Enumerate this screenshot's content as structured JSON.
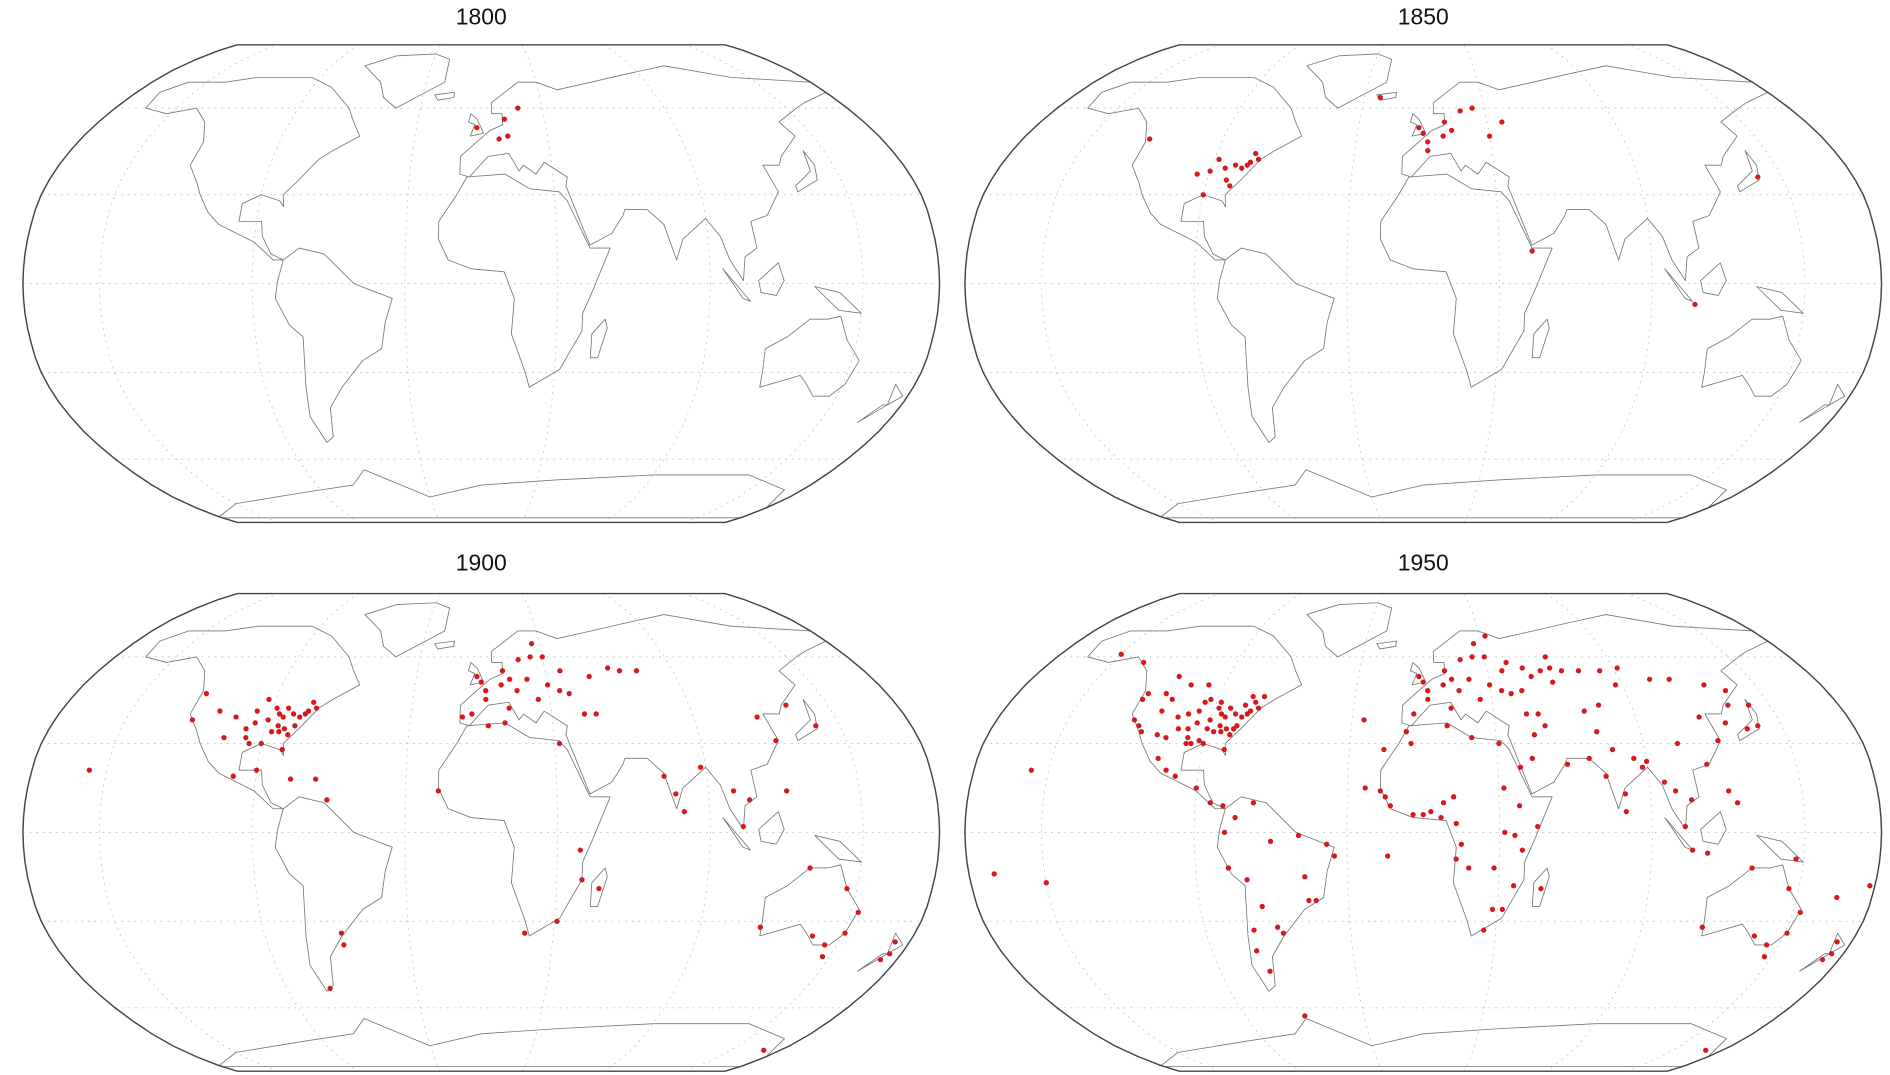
{
  "marker_color": "#d7191c",
  "panels": [
    {
      "title": "1800",
      "points": [
        [
          -2,
          53
        ],
        [
          8,
          49
        ],
        [
          12,
          50
        ],
        [
          18,
          60
        ],
        [
          11,
          56
        ]
      ]
    },
    {
      "title": "1850",
      "points": [
        [
          -74,
          41
        ],
        [
          -71,
          42
        ],
        [
          -75,
          40
        ],
        [
          -77,
          39
        ],
        [
          -80,
          40
        ],
        [
          -84,
          39
        ],
        [
          -88,
          42
        ],
        [
          -90,
          38
        ],
        [
          -82,
          35
        ],
        [
          -90,
          30
        ],
        [
          -95,
          37
        ],
        [
          -80,
          33
        ],
        [
          -73,
          44
        ],
        [
          -123,
          49
        ],
        [
          -2,
          53
        ],
        [
          0,
          51
        ],
        [
          2,
          48
        ],
        [
          9,
          50
        ],
        [
          13,
          52
        ],
        [
          18,
          59
        ],
        [
          24,
          60
        ],
        [
          10,
          55
        ],
        [
          2,
          45
        ],
        [
          30,
          50
        ],
        [
          37,
          55
        ],
        [
          -22,
          64
        ],
        [
          43,
          11
        ],
        [
          140,
          36
        ],
        [
          107,
          -7
        ]
      ]
    },
    {
      "title": "1900",
      "points": [
        [
          -74,
          41
        ],
        [
          -71,
          42
        ],
        [
          -75,
          40
        ],
        [
          -77,
          39
        ],
        [
          -80,
          40
        ],
        [
          -84,
          39
        ],
        [
          -88,
          42
        ],
        [
          -90,
          38
        ],
        [
          -82,
          35
        ],
        [
          -90,
          30
        ],
        [
          -95,
          37
        ],
        [
          -80,
          33
        ],
        [
          -73,
          44
        ],
        [
          -83,
          42
        ],
        [
          -86,
          40
        ],
        [
          -93,
          45
        ],
        [
          -96,
          41
        ],
        [
          -98,
          35
        ],
        [
          -97,
          32
        ],
        [
          -95,
          30
        ],
        [
          -87,
          34
        ],
        [
          -84,
          34
        ],
        [
          -81,
          28
        ],
        [
          -78,
          36
        ],
        [
          -104,
          39
        ],
        [
          -112,
          41
        ],
        [
          -122,
          38
        ],
        [
          -122,
          47
        ],
        [
          -106,
          32
        ],
        [
          -85,
          36
        ],
        [
          -99,
          19
        ],
        [
          -90,
          21
        ],
        [
          -76,
          18
        ],
        [
          -66,
          18
        ],
        [
          -61,
          11
        ],
        [
          -58,
          -34
        ],
        [
          -70,
          -53
        ],
        [
          -58,
          -38
        ],
        [
          -157,
          21
        ],
        [
          -2,
          53
        ],
        [
          0,
          51
        ],
        [
          2,
          48
        ],
        [
          9,
          50
        ],
        [
          13,
          52
        ],
        [
          18,
          59
        ],
        [
          24,
          60
        ],
        [
          10,
          55
        ],
        [
          2,
          45
        ],
        [
          30,
          50
        ],
        [
          37,
          55
        ],
        [
          21,
          52
        ],
        [
          16,
          48
        ],
        [
          12,
          42
        ],
        [
          -4,
          40
        ],
        [
          -8,
          39
        ],
        [
          25,
          45
        ],
        [
          44,
          40
        ],
        [
          50,
          53
        ],
        [
          60,
          56
        ],
        [
          30,
          60
        ],
        [
          26,
          65
        ],
        [
          35,
          48
        ],
        [
          39,
          47
        ],
        [
          49,
          40
        ],
        [
          65,
          55
        ],
        [
          73,
          55
        ],
        [
          77,
          13
        ],
        [
          73,
          19
        ],
        [
          88,
          22
        ],
        [
          80,
          7
        ],
        [
          100,
          14
        ],
        [
          106,
          11
        ],
        [
          103,
          2
        ],
        [
          121,
          14
        ],
        [
          121,
          31
        ],
        [
          117,
          39
        ],
        [
          132,
          43
        ],
        [
          140,
          36
        ],
        [
          32,
          30
        ],
        [
          10,
          37
        ],
        [
          3,
          36
        ],
        [
          -17,
          14
        ],
        [
          39,
          -6
        ],
        [
          40,
          -16
        ],
        [
          18,
          -34
        ],
        [
          31,
          -30
        ],
        [
          47,
          -19
        ],
        [
          115,
          -32
        ],
        [
          138,
          -35
        ],
        [
          145,
          -38
        ],
        [
          151,
          -34
        ],
        [
          153,
          -27
        ],
        [
          146,
          -19
        ],
        [
          130,
          -12
        ],
        [
          147,
          -42
        ],
        [
          175,
          -41
        ],
        [
          173,
          -43
        ],
        [
          174,
          -37
        ],
        [
          170,
          -77
        ]
      ]
    },
    {
      "title": "1950",
      "points": [
        [
          -74,
          41
        ],
        [
          -71,
          42
        ],
        [
          -75,
          40
        ],
        [
          -77,
          39
        ],
        [
          -80,
          40
        ],
        [
          -84,
          39
        ],
        [
          -88,
          42
        ],
        [
          -90,
          38
        ],
        [
          -82,
          35
        ],
        [
          -90,
          30
        ],
        [
          -95,
          37
        ],
        [
          -80,
          33
        ],
        [
          -73,
          44
        ],
        [
          -83,
          42
        ],
        [
          -86,
          40
        ],
        [
          -93,
          45
        ],
        [
          -96,
          41
        ],
        [
          -98,
          35
        ],
        [
          -97,
          32
        ],
        [
          -95,
          30
        ],
        [
          -87,
          34
        ],
        [
          -84,
          34
        ],
        [
          -81,
          28
        ],
        [
          -78,
          36
        ],
        [
          -104,
          39
        ],
        [
          -112,
          41
        ],
        [
          -122,
          38
        ],
        [
          -122,
          47
        ],
        [
          -106,
          32
        ],
        [
          -85,
          36
        ],
        [
          -100,
          40
        ],
        [
          -102,
          35
        ],
        [
          -110,
          33
        ],
        [
          -117,
          34
        ],
        [
          -119,
          36
        ],
        [
          -90,
          35
        ],
        [
          -92,
          31
        ],
        [
          -97,
          30
        ],
        [
          -95,
          44
        ],
        [
          -88,
          44
        ],
        [
          -70,
          46
        ],
        [
          -77,
          43
        ],
        [
          -79,
          35
        ],
        [
          -110,
          45
        ],
        [
          -114,
          47
        ],
        [
          -123,
          45
        ],
        [
          -135,
          58
        ],
        [
          -150,
          61
        ],
        [
          -105,
          50
        ],
        [
          -113,
          53
        ],
        [
          -97,
          50
        ],
        [
          -75,
          46
        ],
        [
          -99,
          19
        ],
        [
          -103,
          21
        ],
        [
          -107,
          25
        ],
        [
          -90,
          15
        ],
        [
          -84,
          10
        ],
        [
          -79,
          9
        ],
        [
          -74,
          5
        ],
        [
          -67,
          10
        ],
        [
          -78,
          0
        ],
        [
          -77,
          -12
        ],
        [
          -70,
          -16
        ],
        [
          -47,
          -15
        ],
        [
          -43,
          -23
        ],
        [
          -46,
          -23
        ],
        [
          -35,
          -8
        ],
        [
          -38,
          -4
        ],
        [
          -49,
          -1
        ],
        [
          -60,
          -3
        ],
        [
          -58,
          -34
        ],
        [
          -60,
          -32
        ],
        [
          -65,
          -25
        ],
        [
          -70,
          -33
        ],
        [
          -71,
          -40
        ],
        [
          -68,
          -47
        ],
        [
          -17,
          14
        ],
        [
          -15,
          12
        ],
        [
          -13,
          9
        ],
        [
          -4,
          6
        ],
        [
          0,
          6
        ],
        [
          3,
          7
        ],
        [
          8,
          10
        ],
        [
          7,
          5
        ],
        [
          12,
          12
        ],
        [
          13,
          3
        ],
        [
          15,
          -4
        ],
        [
          13,
          -9
        ],
        [
          18,
          -12
        ],
        [
          28,
          -12
        ],
        [
          32,
          -26
        ],
        [
          28,
          -26
        ],
        [
          25,
          -33
        ],
        [
          36,
          -1
        ],
        [
          39,
          -6
        ],
        [
          32,
          0
        ],
        [
          32,
          15
        ],
        [
          38,
          9
        ],
        [
          45,
          2
        ],
        [
          31,
          30
        ],
        [
          10,
          36
        ],
        [
          -7,
          34
        ],
        [
          -5,
          30
        ],
        [
          20,
          32
        ],
        [
          36,
          -18
        ],
        [
          47,
          -19
        ],
        [
          -2,
          53
        ],
        [
          0,
          51
        ],
        [
          2,
          48
        ],
        [
          9,
          50
        ],
        [
          13,
          52
        ],
        [
          18,
          59
        ],
        [
          24,
          60
        ],
        [
          10,
          55
        ],
        [
          2,
          45
        ],
        [
          30,
          50
        ],
        [
          37,
          55
        ],
        [
          21,
          52
        ],
        [
          16,
          48
        ],
        [
          12,
          42
        ],
        [
          -4,
          40
        ],
        [
          25,
          45
        ],
        [
          44,
          40
        ],
        [
          50,
          53
        ],
        [
          60,
          56
        ],
        [
          30,
          60
        ],
        [
          26,
          65
        ],
        [
          35,
          48
        ],
        [
          39,
          47
        ],
        [
          49,
          40
        ],
        [
          65,
          55
        ],
        [
          73,
          55
        ],
        [
          83,
          55
        ],
        [
          92,
          56
        ],
        [
          104,
          52
        ],
        [
          113,
          52
        ],
        [
          127,
          50
        ],
        [
          135,
          48
        ],
        [
          132,
          43
        ],
        [
          87,
          50
        ],
        [
          76,
          43
        ],
        [
          69,
          41
        ],
        [
          59,
          51
        ],
        [
          55,
          55
        ],
        [
          40,
          58
        ],
        [
          33,
          68
        ],
        [
          60,
          60
        ],
        [
          47,
          56
        ],
        [
          44,
          48
        ],
        [
          51,
          36
        ],
        [
          46,
          33
        ],
        [
          44,
          25
        ],
        [
          39,
          22
        ],
        [
          58,
          23
        ],
        [
          67,
          25
        ],
        [
          72,
          34
        ],
        [
          77,
          28
        ],
        [
          73,
          19
        ],
        [
          80,
          13
        ],
        [
          88,
          22
        ],
        [
          85,
          25
        ],
        [
          90,
          24
        ],
        [
          80,
          7
        ],
        [
          96,
          17
        ],
        [
          100,
          14
        ],
        [
          106,
          11
        ],
        [
          103,
          2
        ],
        [
          106,
          -6
        ],
        [
          112,
          -7
        ],
        [
          121,
          14
        ],
        [
          124,
          10
        ],
        [
          121,
          31
        ],
        [
          117,
          39
        ],
        [
          114,
          23
        ],
        [
          104,
          30
        ],
        [
          140,
          36
        ],
        [
          135,
          35
        ],
        [
          141,
          43
        ],
        [
          127,
          37
        ],
        [
          115,
          -32
        ],
        [
          138,
          -35
        ],
        [
          145,
          -38
        ],
        [
          151,
          -34
        ],
        [
          153,
          -27
        ],
        [
          146,
          -19
        ],
        [
          130,
          -12
        ],
        [
          147,
          -42
        ],
        [
          175,
          -41
        ],
        [
          173,
          -43
        ],
        [
          174,
          -37
        ],
        [
          178,
          -18
        ],
        [
          147,
          -9
        ],
        [
          166,
          -22
        ],
        [
          -157,
          21
        ],
        [
          -170,
          -14
        ],
        [
          -150,
          -17
        ],
        [
          -25,
          38
        ],
        [
          -16,
          28
        ],
        [
          -23,
          15
        ],
        [
          -14,
          -8
        ],
        [
          -60,
          -63
        ],
        [
          170,
          -77
        ]
      ]
    }
  ]
}
